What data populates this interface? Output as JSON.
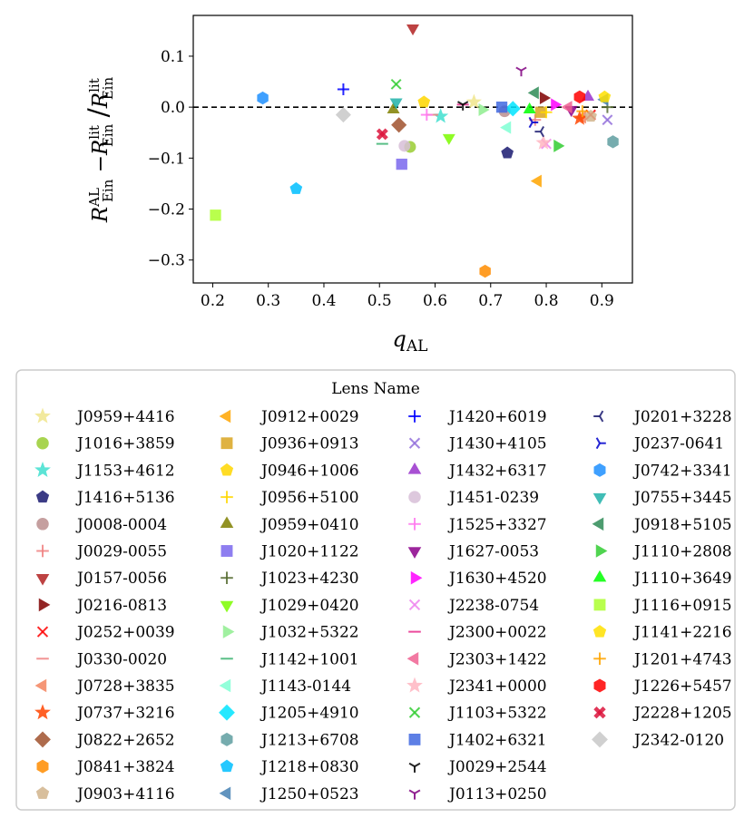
{
  "chart_data": {
    "type": "scatter",
    "title": "",
    "xlabel": {
      "base": "q",
      "sub": "AL"
    },
    "ylabel": {
      "parts": [
        "R",
        "AL",
        "Ein",
        "−",
        "R",
        "lit",
        "Ein",
        "/",
        "R",
        "lit",
        "Ein"
      ]
    },
    "xlim": [
      0.165,
      0.955
    ],
    "ylim": [
      -0.345,
      0.18
    ],
    "xticks": [
      0.2,
      0.3,
      0.4,
      0.5,
      0.6,
      0.7,
      0.8,
      0.9
    ],
    "xtick_labels": [
      "0.2",
      "0.3",
      "0.4",
      "0.5",
      "0.6",
      "0.7",
      "0.8",
      "0.9"
    ],
    "yticks": [
      -0.3,
      -0.2,
      -0.1,
      0.0,
      0.1
    ],
    "ytick_labels": [
      "−0.3",
      "−0.2",
      "−0.1",
      "0.0",
      "0.1"
    ],
    "reference_line": {
      "y": 0.0,
      "style": "dashed"
    },
    "legend_title": "Lens Name",
    "legend_position": "below",
    "series": [
      {
        "name": "J0959+4416",
        "marker": "star",
        "color": "#f0e68c",
        "x": 0.67,
        "y": 0.01
      },
      {
        "name": "J1016+3859",
        "marker": "circle",
        "color": "#9acd32",
        "x": 0.555,
        "y": -0.078
      },
      {
        "name": "J1153+4612",
        "marker": "star",
        "color": "#40e0d0",
        "x": 0.61,
        "y": -0.018
      },
      {
        "name": "J1416+5136",
        "marker": "pentagon",
        "color": "#191970",
        "x": 0.73,
        "y": -0.09
      },
      {
        "name": "J0008-0004",
        "marker": "circle",
        "color": "#bc8f8f",
        "x": 0.725,
        "y": -0.008
      },
      {
        "name": "J0029-0055",
        "marker": "plus",
        "color": "#f08080",
        "x": 0.78,
        "y": -0.025
      },
      {
        "name": "J0157-0056",
        "marker": "triangle_down",
        "color": "#b22222",
        "x": 0.56,
        "y": 0.155
      },
      {
        "name": "J0216-0813",
        "marker": "triangle_right",
        "color": "#800000",
        "x": 0.795,
        "y": 0.018
      },
      {
        "name": "J0252+0039",
        "marker": "x",
        "color": "#ff0000",
        "x": 0.88,
        "y": -0.015
      },
      {
        "name": "J0330-0020",
        "marker": "hline",
        "color": "#f08080",
        "x": 0.595,
        "y": -0.015
      },
      {
        "name": "J0728+3835",
        "marker": "triangle_left",
        "color": "#f4845f",
        "x": 0.865,
        "y": -0.02
      },
      {
        "name": "J0737+3216",
        "marker": "star",
        "color": "#ff4500",
        "x": 0.86,
        "y": -0.022
      },
      {
        "name": "J0822+2652",
        "marker": "diamond",
        "color": "#a0522d",
        "x": 0.535,
        "y": -0.035
      },
      {
        "name": "J0841+3824",
        "marker": "hexagon",
        "color": "#ff8c00",
        "x": 0.69,
        "y": -0.322
      },
      {
        "name": "J0903+4116",
        "marker": "pentagon",
        "color": "#d2b48c",
        "x": 0.88,
        "y": -0.018
      },
      {
        "name": "J0912+0029",
        "marker": "triangle_left",
        "color": "#ffa500",
        "x": 0.785,
        "y": -0.145
      },
      {
        "name": "J0936+0913",
        "marker": "square",
        "color": "#daa520",
        "x": 0.79,
        "y": -0.01
      },
      {
        "name": "J0946+1006",
        "marker": "pentagon",
        "color": "#ffd700",
        "x": 0.58,
        "y": 0.01
      },
      {
        "name": "J0956+5100",
        "marker": "plus",
        "color": "#ffd700",
        "x": 0.8,
        "y": -0.01
      },
      {
        "name": "J0959+0410",
        "marker": "triangle_up",
        "color": "#808000",
        "x": 0.525,
        "y": -0.005
      },
      {
        "name": "J1020+1122",
        "marker": "square",
        "color": "#7b68ee",
        "x": 0.54,
        "y": -0.112
      },
      {
        "name": "J1023+4230",
        "marker": "plus",
        "color": "#556b2f",
        "x": 0.91,
        "y": 0.0
      },
      {
        "name": "J1029+0420",
        "marker": "triangle_down",
        "color": "#7cfc00",
        "x": 0.625,
        "y": -0.06
      },
      {
        "name": "J1032+5322",
        "marker": "triangle_right",
        "color": "#90ee90",
        "x": 0.685,
        "y": -0.005
      },
      {
        "name": "J1142+1001",
        "marker": "hline",
        "color": "#3cb371",
        "x": 0.505,
        "y": -0.072
      },
      {
        "name": "J1143-0144",
        "marker": "triangle_left",
        "color": "#7fffd4",
        "x": 0.73,
        "y": -0.04
      },
      {
        "name": "J1205+4910",
        "marker": "diamond",
        "color": "#00e5ff",
        "x": 0.74,
        "y": -0.003
      },
      {
        "name": "J1213+6708",
        "marker": "hexagon",
        "color": "#5f9ea0",
        "x": 0.92,
        "y": -0.068
      },
      {
        "name": "J1218+0830",
        "marker": "pentagon",
        "color": "#00bfff",
        "x": 0.35,
        "y": -0.16
      },
      {
        "name": "J1250+0523",
        "marker": "triangle_left",
        "color": "#4682b4",
        "x": 0.905,
        "y": 0.015
      },
      {
        "name": "J1420+6019",
        "marker": "plus",
        "color": "#0000ff",
        "x": 0.435,
        "y": 0.035
      },
      {
        "name": "J1430+4105",
        "marker": "x",
        "color": "#9370db",
        "x": 0.91,
        "y": -0.025
      },
      {
        "name": "J1432+6317",
        "marker": "triangle_up",
        "color": "#9932cc",
        "x": 0.875,
        "y": 0.02
      },
      {
        "name": "J1451-0239",
        "marker": "circle",
        "color": "#d8bfd8",
        "x": 0.545,
        "y": -0.076
      },
      {
        "name": "J1525+3327",
        "marker": "plus",
        "color": "#ff77ee",
        "x": 0.585,
        "y": -0.015
      },
      {
        "name": "J1627-0053",
        "marker": "triangle_down",
        "color": "#8b008b",
        "x": 0.845,
        "y": -0.005
      },
      {
        "name": "J1630+4520",
        "marker": "triangle_right",
        "color": "#ff00ff",
        "x": 0.815,
        "y": 0.005
      },
      {
        "name": "J2238-0754",
        "marker": "x",
        "color": "#ee82ee",
        "x": 0.8,
        "y": -0.072
      },
      {
        "name": "J2300+0022",
        "marker": "hline",
        "color": "#e7298a",
        "x": 0.65,
        "y": 0.005
      },
      {
        "name": "J2303+1422",
        "marker": "triangle_left",
        "color": "#f06292",
        "x": 0.84,
        "y": 0.0
      },
      {
        "name": "J2341+0000",
        "marker": "star",
        "color": "#ffb6c1",
        "x": 0.795,
        "y": -0.07
      },
      {
        "name": "J1103+5322",
        "marker": "x",
        "color": "#32cd32",
        "x": 0.53,
        "y": 0.045
      },
      {
        "name": "J1402+6321",
        "marker": "square",
        "color": "#4169e1",
        "x": 0.72,
        "y": 0.0
      },
      {
        "name": "J0029+2544",
        "marker": "tri_down",
        "color": "#000000",
        "x": 0.65,
        "y": 0.005
      },
      {
        "name": "J0113+0250",
        "marker": "tri_down",
        "color": "#800080",
        "x": 0.755,
        "y": 0.072
      },
      {
        "name": "J0201+3228",
        "marker": "tri_left",
        "color": "#191970",
        "x": 0.79,
        "y": -0.048
      },
      {
        "name": "J0237-0641",
        "marker": "tri_right",
        "color": "#0000cd",
        "x": 0.775,
        "y": -0.03
      },
      {
        "name": "J0742+3341",
        "marker": "hexagon",
        "color": "#1e90ff",
        "x": 0.29,
        "y": 0.018
      },
      {
        "name": "J0755+3445",
        "marker": "triangle_down",
        "color": "#20b2aa",
        "x": 0.53,
        "y": 0.01
      },
      {
        "name": "J0918+5105",
        "marker": "triangle_left",
        "color": "#2e8b57",
        "x": 0.78,
        "y": 0.028
      },
      {
        "name": "J1110+2808",
        "marker": "triangle_right",
        "color": "#32cd32",
        "x": 0.82,
        "y": -0.076
      },
      {
        "name": "J1110+3649",
        "marker": "triangle_up",
        "color": "#00ff00",
        "x": 0.77,
        "y": -0.005
      },
      {
        "name": "J1116+0915",
        "marker": "square",
        "color": "#adff2f",
        "x": 0.205,
        "y": -0.212
      },
      {
        "name": "J1141+2216",
        "marker": "pentagon",
        "color": "#ffe100",
        "x": 0.905,
        "y": 0.02
      },
      {
        "name": "J1201+4743",
        "marker": "plus",
        "color": "#ffa500",
        "x": 0.865,
        "y": -0.008
      },
      {
        "name": "J1226+5457",
        "marker": "hexagon",
        "color": "#ff0000",
        "x": 0.86,
        "y": 0.02
      },
      {
        "name": "J2228+1205",
        "marker": "x_filled",
        "color": "#dc143c",
        "x": 0.505,
        "y": -0.053
      },
      {
        "name": "J2342-0120",
        "marker": "diamond",
        "color": "#c8c8c8",
        "x": 0.435,
        "y": -0.015
      }
    ]
  }
}
